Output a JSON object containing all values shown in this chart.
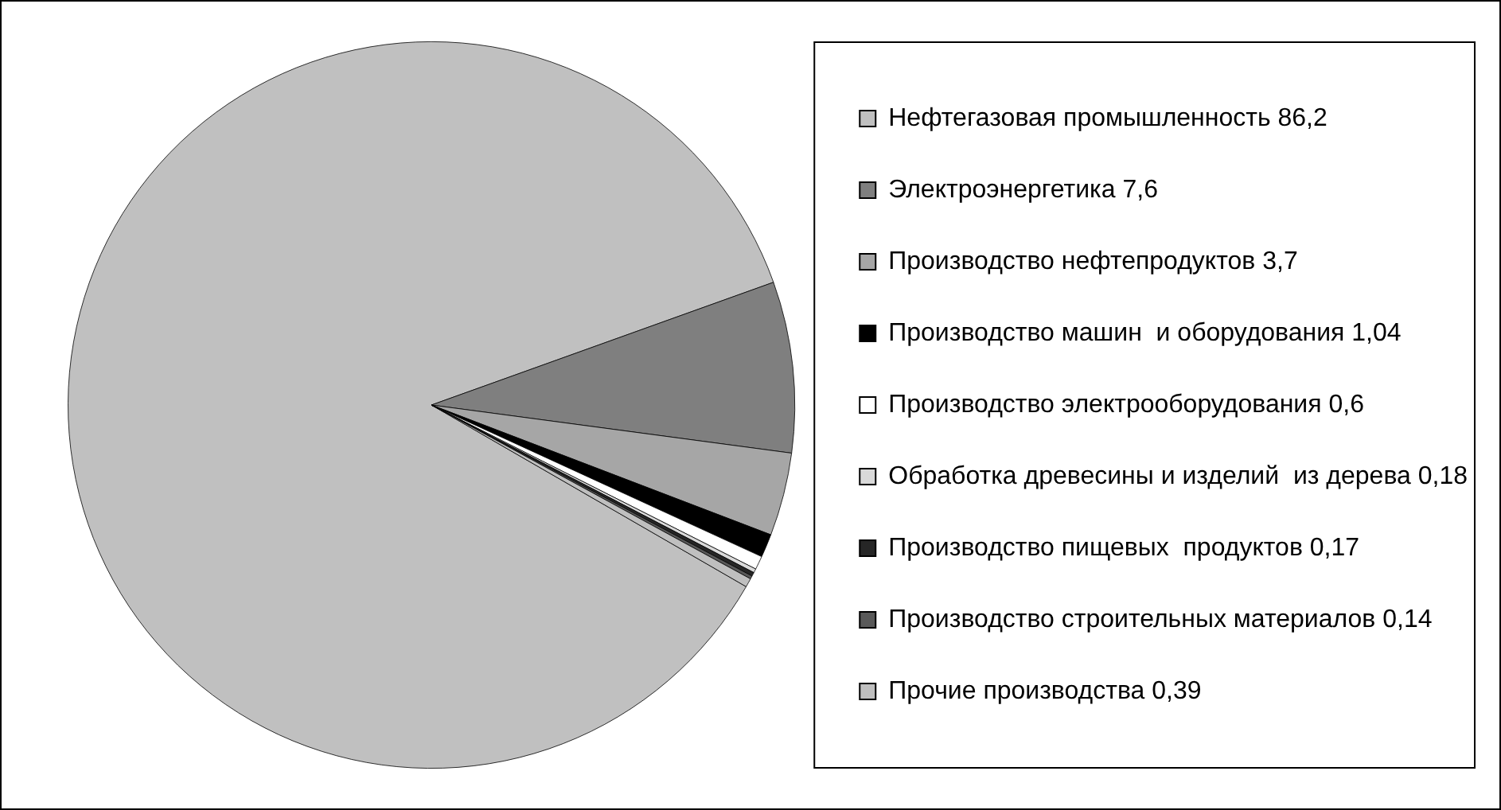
{
  "chart_data": {
    "type": "pie",
    "categories": [
      "Нефтегазовая промышленность",
      "Электроэнергетика",
      "Производство нефтепродуктов",
      "Производство машин  и оборудования",
      "Производство электрооборудования",
      "Обработка древесины и изделий  из дерева",
      "Производство пищевых  продуктов",
      "Производство строительных материалов",
      "Прочие производства"
    ],
    "values": [
      86.2,
      7.6,
      3.7,
      1.04,
      0.6,
      0.18,
      0.17,
      0.14,
      0.39
    ],
    "value_labels": [
      "86,2",
      "7,6",
      "3,7",
      "1,04",
      "0,6",
      "0,18",
      "0,17",
      "0,14",
      "0,39"
    ],
    "colors": [
      "#c0c0c0",
      "#7f7f7f",
      "#a6a6a6",
      "#000000",
      "#ffffff",
      "#d9d9d9",
      "#262626",
      "#595959",
      "#bfbfbf"
    ],
    "legend": "right"
  }
}
